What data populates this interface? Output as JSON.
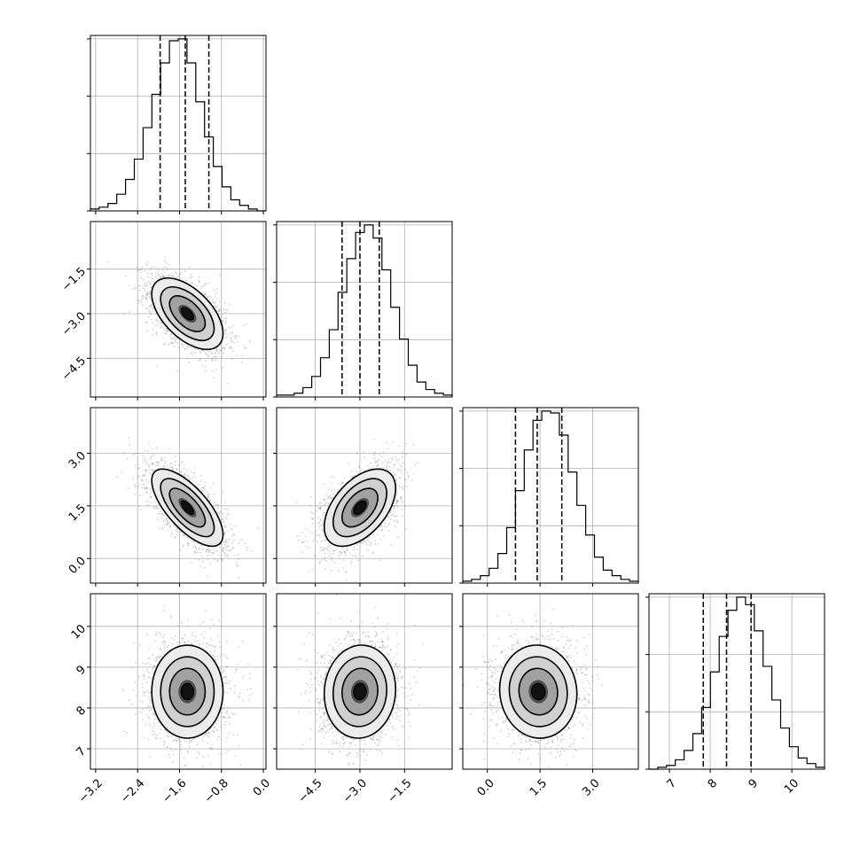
{
  "chart_data": {
    "type": "corner",
    "title": "",
    "grid": true,
    "colors": {
      "hist": "#000000",
      "grid": "#b0b0b0",
      "contour": "#000000",
      "dashed": "#000000",
      "density": "#000000"
    },
    "parameters": [
      {
        "name": "p1",
        "label": "",
        "range": [
          -3.3,
          0.05
        ],
        "ticks": [
          -3.2,
          -2.4,
          -1.6,
          -0.8,
          0.0
        ],
        "tick_labels": [
          "−3.2",
          "−2.4",
          "−1.6",
          "−0.8",
          "0.0"
        ],
        "mean": -1.45,
        "sd": 0.34,
        "quantiles": [
          -1.97,
          -1.49,
          -1.04
        ],
        "hist_counts": [
          1,
          2,
          4,
          9,
          17,
          28,
          45,
          63,
          80,
          92,
          93,
          80,
          59,
          40,
          24,
          13,
          6,
          3,
          1,
          0
        ]
      },
      {
        "name": "p2",
        "label": "",
        "range": [
          -5.8,
          0.1
        ],
        "ticks": [
          -4.5,
          -3.0,
          -1.5
        ],
        "tick_labels": [
          "−4.5",
          "−3.0",
          "−1.5"
        ],
        "mean": -3.0,
        "sd": 0.6,
        "quantiles": [
          -3.6,
          -3.0,
          -2.35
        ],
        "hist_counts": [
          1,
          1,
          2,
          5,
          11,
          21,
          36,
          56,
          74,
          88,
          92,
          85,
          68,
          48,
          31,
          17,
          8,
          4,
          2,
          1
        ]
      },
      {
        "name": "p3",
        "label": "",
        "range": [
          -0.7,
          4.3
        ],
        "ticks": [
          0.0,
          1.5,
          3.0
        ],
        "tick_labels": [
          "0.0",
          "1.5",
          "3.0"
        ],
        "mean": 1.45,
        "sd": 0.55,
        "quantiles": [
          0.8,
          1.42,
          2.12
        ],
        "hist_counts": [
          1,
          2,
          4,
          8,
          16,
          30,
          50,
          72,
          88,
          93,
          92,
          80,
          60,
          42,
          26,
          14,
          7,
          4,
          2,
          1
        ]
      },
      {
        "name": "p4",
        "label": "",
        "range": [
          6.5,
          10.8
        ],
        "ticks": [
          7,
          8,
          9,
          10
        ],
        "tick_labels": [
          "7",
          "8",
          "9",
          "10"
        ],
        "mean": 8.4,
        "sd": 0.57,
        "quantiles": [
          7.83,
          8.4,
          9.0
        ],
        "hist_counts": [
          0,
          1,
          2,
          5,
          10,
          19,
          33,
          52,
          71,
          85,
          92,
          88,
          74,
          55,
          37,
          22,
          12,
          6,
          3,
          1
        ]
      }
    ],
    "correlations": [
      [
        1.0,
        -0.55,
        -0.7,
        0.0
      ],
      [
        -0.55,
        1.0,
        0.5,
        0.05
      ],
      [
        -0.7,
        0.5,
        1.0,
        -0.05
      ],
      [
        0.0,
        0.05,
        -0.05,
        1.0
      ]
    ],
    "contour_levels_sigma": [
      0.5,
      1.0,
      1.5,
      2.0
    ]
  }
}
